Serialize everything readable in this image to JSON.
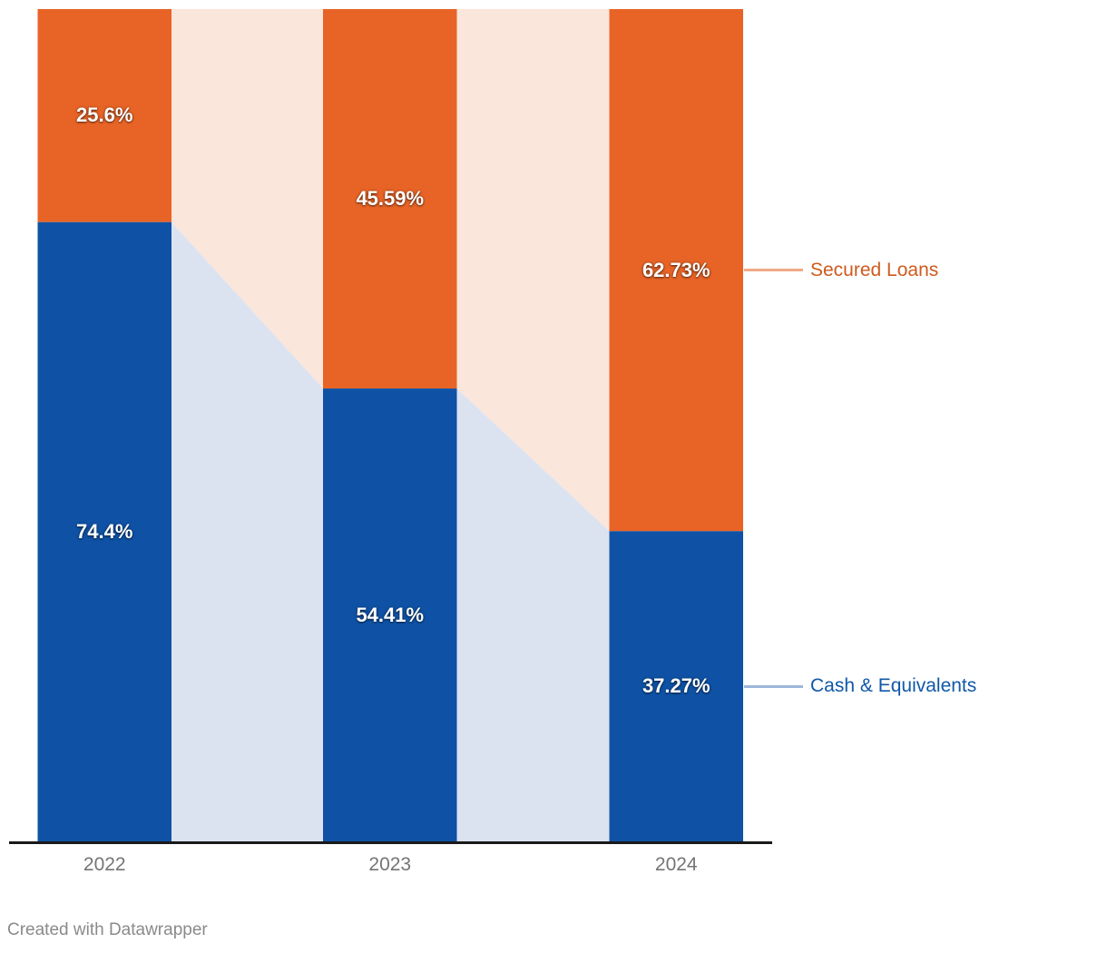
{
  "chart_data": {
    "type": "bar",
    "variant": "stacked-column-100",
    "title": "",
    "xlabel": "",
    "ylabel": "",
    "unit": "%",
    "ylim": [
      0,
      100
    ],
    "grid": false,
    "legend_position": "right",
    "categories": [
      "2022",
      "2023",
      "2024"
    ],
    "series": [
      {
        "name": "Secured Loans",
        "values": [
          25.6,
          45.59,
          62.73
        ],
        "labels": [
          "25.6%",
          "45.59%",
          "62.73%"
        ],
        "color": "#E86426",
        "connector_color": "#FBE6DB",
        "legend_text_color": "#CE5A1E",
        "legend_line_color": "#F0AA87"
      },
      {
        "name": "Cash & Equivalents",
        "values": [
          74.4,
          54.41,
          37.27
        ],
        "labels": [
          "74.4%",
          "54.41%",
          "37.27%"
        ],
        "color": "#0F52A5",
        "connector_color": "#DBE3F1",
        "legend_text_color": "#1058A8",
        "legend_line_color": "#9EB6DB"
      }
    ],
    "value_label_color": "#FFFFFF",
    "axis_line_color": "#1A1A1A",
    "axis_label_color": "#757575"
  },
  "caption": {
    "text": "Created with Datawrapper",
    "color": "#8A8A8A"
  }
}
